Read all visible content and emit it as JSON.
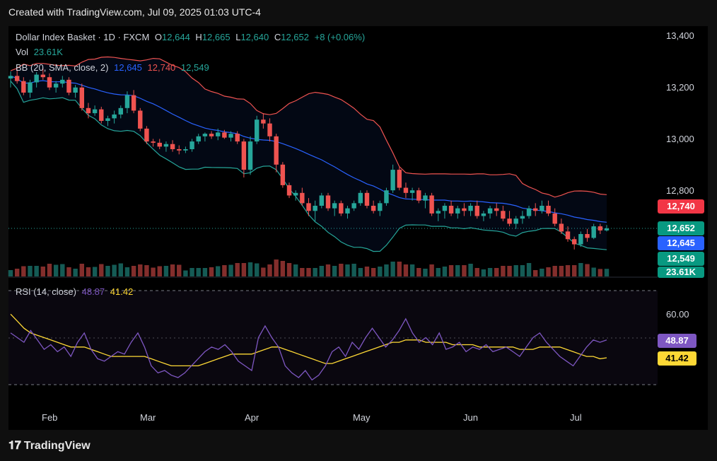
{
  "header": {
    "created": "Created with TradingView.com, Jul 09, 2025 01:03 UTC-4"
  },
  "legend": {
    "symbol": "Dollar Index Basket · 1D · FXCM",
    "o_label": "O",
    "o": "12,644",
    "h_label": "H",
    "h": "12,665",
    "l_label": "L",
    "l": "12,640",
    "c_label": "C",
    "c": "12,652",
    "change": "+8 (+0.06%)",
    "vol_label": "Vol",
    "vol": "23.61K",
    "bb_label": "BB (20, SMA, close, 2)",
    "bb_basis": "12,645",
    "bb_upper": "12,740",
    "bb_lower": "12,549",
    "rsi_label": "RSI (14, close)",
    "rsi": "48.87",
    "rsi_ma": "41.42"
  },
  "axis": {
    "price_ticks": [
      "13,400",
      "13,200",
      "13,000",
      "12,800"
    ],
    "rsi_ticks": [
      "60.00"
    ],
    "months": [
      "Feb",
      "Mar",
      "Apr",
      "May",
      "Jun",
      "Jul"
    ]
  },
  "tags": {
    "upper": "12,740",
    "close": "12,652",
    "basis": "12,645",
    "lower": "12,549",
    "vol": "23.61K",
    "rsi": "48.87",
    "rsi_ma": "41.42"
  },
  "colors": {
    "up": "#26a69a",
    "down": "#ef5350",
    "basis": "#2962ff",
    "band": "#ef5350",
    "lowerband": "#26a69a",
    "rsi": "#7e57c2",
    "rsi_ma": "#fdd835"
  },
  "footer": {
    "brand": "TradingView"
  },
  "chart_data": [
    {
      "type": "candlestick",
      "title": "Dollar Index Basket · 1D · FXCM",
      "ylim": [
        12480,
        13440
      ],
      "x_months": [
        "Feb",
        "Mar",
        "Apr",
        "May",
        "Jun",
        "Jul"
      ],
      "ohlc": [
        [
          13235,
          13262,
          13200,
          13245
        ],
        [
          13245,
          13270,
          13215,
          13225
        ],
        [
          13225,
          13240,
          13170,
          13180
        ],
        [
          13180,
          13230,
          13160,
          13220
        ],
        [
          13220,
          13260,
          13200,
          13250
        ],
        [
          13250,
          13275,
          13230,
          13240
        ],
        [
          13240,
          13255,
          13190,
          13200
        ],
        [
          13200,
          13225,
          13180,
          13215
        ],
        [
          13215,
          13245,
          13200,
          13230
        ],
        [
          13230,
          13240,
          13170,
          13180
        ],
        [
          13180,
          13210,
          13160,
          13200
        ],
        [
          13200,
          13215,
          13110,
          13120
        ],
        [
          13120,
          13140,
          13080,
          13100
        ],
        [
          13100,
          13130,
          13090,
          13115
        ],
        [
          13115,
          13125,
          13060,
          13070
        ],
        [
          13070,
          13090,
          13050,
          13080
        ],
        [
          13080,
          13110,
          13060,
          13095
        ],
        [
          13095,
          13130,
          13080,
          13120
        ],
        [
          13120,
          13185,
          13100,
          13170
        ],
        [
          13170,
          13190,
          13100,
          13110
        ],
        [
          13110,
          13120,
          13030,
          13040
        ],
        [
          13040,
          13050,
          12980,
          12990
        ],
        [
          12990,
          13000,
          12970,
          12985
        ],
        [
          12985,
          13000,
          12960,
          12970
        ],
        [
          12970,
          12990,
          12950,
          12980
        ],
        [
          12980,
          12995,
          12950,
          12960
        ],
        [
          12960,
          12975,
          12940,
          12955
        ],
        [
          12955,
          12970,
          12945,
          12960
        ],
        [
          12960,
          13000,
          12950,
          12990
        ],
        [
          12990,
          13020,
          12980,
          13010
        ],
        [
          13010,
          13025,
          12990,
          13020
        ],
        [
          13020,
          13030,
          13000,
          13010
        ],
        [
          13010,
          13040,
          12995,
          13025
        ],
        [
          13025,
          13035,
          13000,
          13005
        ],
        [
          13005,
          13030,
          12990,
          13020
        ],
        [
          13020,
          13030,
          12980,
          12990
        ],
        [
          12990,
          13000,
          12850,
          12880
        ],
        [
          12880,
          13010,
          12860,
          12990
        ],
        [
          12990,
          13090,
          12980,
          13075
        ],
        [
          13075,
          13100,
          13040,
          13060
        ],
        [
          13060,
          13080,
          12990,
          13010
        ],
        [
          13010,
          13020,
          12870,
          12900
        ],
        [
          12900,
          12910,
          12810,
          12820
        ],
        [
          12820,
          12830,
          12770,
          12780
        ],
        [
          12780,
          12800,
          12760,
          12790
        ],
        [
          12790,
          12810,
          12740,
          12750
        ],
        [
          12750,
          12770,
          12700,
          12720
        ],
        [
          12720,
          12760,
          12680,
          12740
        ],
        [
          12740,
          12790,
          12730,
          12780
        ],
        [
          12780,
          12790,
          12720,
          12730
        ],
        [
          12730,
          12760,
          12700,
          12750
        ],
        [
          12750,
          12760,
          12700,
          12710
        ],
        [
          12710,
          12740,
          12690,
          12730
        ],
        [
          12730,
          12760,
          12720,
          12750
        ],
        [
          12750,
          12800,
          12740,
          12790
        ],
        [
          12790,
          12800,
          12730,
          12740
        ],
        [
          12740,
          12760,
          12710,
          12720
        ],
        [
          12720,
          12760,
          12700,
          12750
        ],
        [
          12750,
          12810,
          12740,
          12800
        ],
        [
          12800,
          12900,
          12790,
          12880
        ],
        [
          12880,
          12890,
          12800,
          12810
        ],
        [
          12810,
          12830,
          12770,
          12790
        ],
        [
          12790,
          12810,
          12760,
          12800
        ],
        [
          12800,
          12810,
          12750,
          12760
        ],
        [
          12760,
          12790,
          12730,
          12780
        ],
        [
          12780,
          12790,
          12700,
          12710
        ],
        [
          12710,
          12730,
          12680,
          12720
        ],
        [
          12720,
          12750,
          12690,
          12740
        ],
        [
          12740,
          12760,
          12700,
          12710
        ],
        [
          12710,
          12740,
          12690,
          12730
        ],
        [
          12730,
          12750,
          12700,
          12720
        ],
        [
          12720,
          12750,
          12700,
          12740
        ],
        [
          12740,
          12760,
          12690,
          12700
        ],
        [
          12700,
          12720,
          12680,
          12710
        ],
        [
          12710,
          12740,
          12690,
          12730
        ],
        [
          12730,
          12750,
          12700,
          12720
        ],
        [
          12720,
          12740,
          12680,
          12690
        ],
        [
          12690,
          12720,
          12660,
          12670
        ],
        [
          12670,
          12700,
          12650,
          12690
        ],
        [
          12690,
          12720,
          12670,
          12700
        ],
        [
          12700,
          12740,
          12690,
          12730
        ],
        [
          12730,
          12750,
          12700,
          12720
        ],
        [
          12720,
          12760,
          12710,
          12740
        ],
        [
          12740,
          12760,
          12700,
          12710
        ],
        [
          12710,
          12730,
          12660,
          12670
        ],
        [
          12670,
          12690,
          12630,
          12640
        ],
        [
          12640,
          12660,
          12600,
          12610
        ],
        [
          12610,
          12620,
          12570,
          12590
        ],
        [
          12590,
          12640,
          12580,
          12630
        ],
        [
          12630,
          12650,
          12600,
          12615
        ],
        [
          12615,
          12670,
          12610,
          12660
        ],
        [
          12660,
          12670,
          12630,
          12644
        ],
        [
          12644,
          12665,
          12640,
          12652
        ]
      ],
      "bollinger": {
        "basis_last": 12645,
        "upper_last": 12740,
        "lower_last": 12549
      },
      "volume_last": "23.61K"
    },
    {
      "type": "line",
      "title": "RSI (14, close)",
      "ylim": [
        30,
        70
      ],
      "series": [
        {
          "name": "RSI",
          "values": [
            52,
            50,
            48,
            53,
            49,
            45,
            47,
            44,
            46,
            42,
            48,
            52,
            45,
            41,
            40,
            42,
            44,
            43,
            48,
            52,
            46,
            38,
            35,
            36,
            34,
            33,
            35,
            38,
            41,
            44,
            46,
            45,
            47,
            44,
            40,
            38,
            36,
            50,
            55,
            50,
            46,
            38,
            35,
            33,
            36,
            32,
            34,
            38,
            44,
            46,
            42,
            48,
            45,
            50,
            54,
            50,
            46,
            49,
            53,
            58,
            52,
            48,
            50,
            47,
            52,
            45,
            46,
            48,
            44,
            46,
            45,
            47,
            44,
            45,
            46,
            44,
            42,
            46,
            50,
            52,
            48,
            45,
            42,
            40,
            38,
            42,
            46,
            49,
            48,
            49
          ]
        },
        {
          "name": "RSI MA",
          "values": [
            60,
            57,
            54,
            52,
            51,
            50,
            49,
            48,
            47,
            46,
            46,
            46,
            45,
            44,
            43,
            42,
            42,
            42,
            42,
            42,
            42,
            41,
            40,
            39,
            38,
            38,
            38,
            38,
            38,
            39,
            40,
            41,
            42,
            43,
            43,
            43,
            43,
            44,
            45,
            46,
            46,
            45,
            44,
            43,
            42,
            41,
            40,
            39,
            39,
            40,
            41,
            42,
            43,
            44,
            45,
            46,
            47,
            48,
            48,
            49,
            49,
            49,
            48,
            48,
            48,
            48,
            47,
            47,
            47,
            47,
            46,
            46,
            46,
            46,
            46,
            46,
            45,
            45,
            45,
            46,
            46,
            46,
            46,
            45,
            44,
            43,
            42,
            42,
            41,
            41.42
          ]
        }
      ]
    }
  ]
}
